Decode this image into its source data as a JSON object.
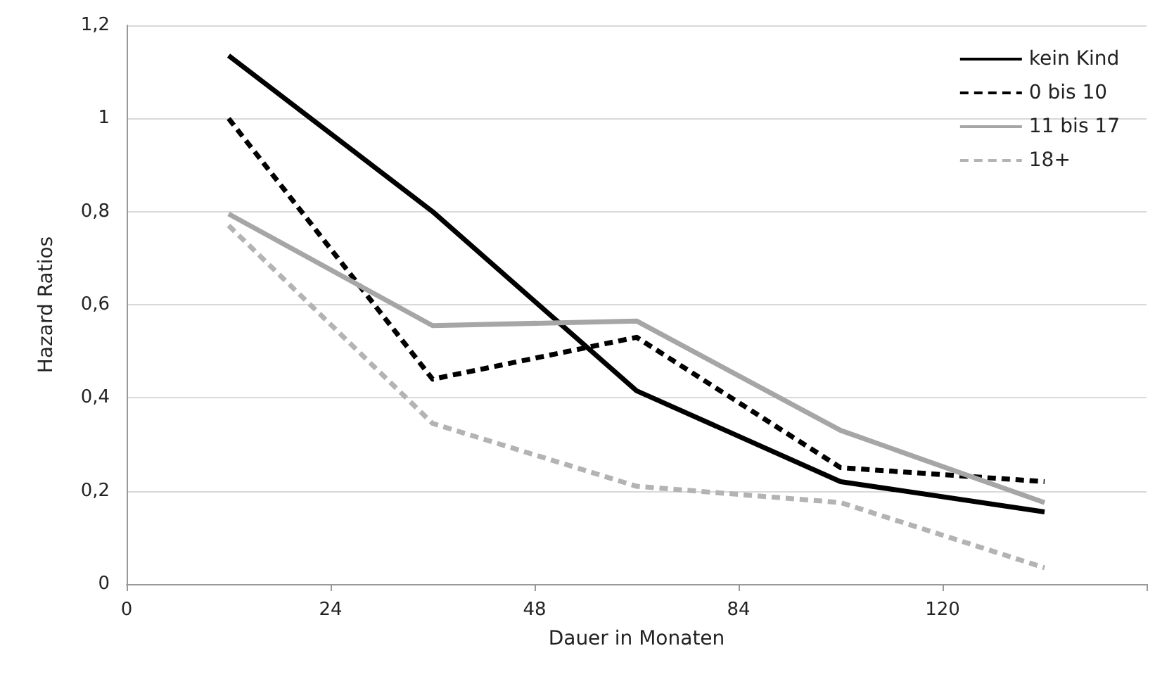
{
  "chart_data": {
    "type": "line",
    "xlabel": "Dauer in Monaten",
    "ylabel": "Hazard Ratios",
    "categories": [
      null,
      null,
      null,
      null,
      null
    ],
    "annotations": [
      "0",
      "24",
      "48",
      "84",
      "120"
    ],
    "series": [
      {
        "name": "kein Kind",
        "color": "#000000",
        "line_style": "solid",
        "values": [
          1.135,
          0.8,
          0.415,
          0.22,
          0.155
        ]
      },
      {
        "name": "0 bis 10",
        "color": "#000000",
        "line_style": "dashed",
        "values": [
          1.0,
          0.44,
          0.53,
          0.25,
          0.22
        ]
      },
      {
        "name": "11 bis 17",
        "color": "#a6a6a6",
        "line_style": "solid",
        "values": [
          0.795,
          0.555,
          0.565,
          0.33,
          0.175
        ]
      },
      {
        "name": "18+",
        "color": "#b3b3b3",
        "line_style": "dashed",
        "values": [
          0.77,
          0.345,
          0.21,
          0.175,
          0.035
        ]
      }
    ],
    "ylim": [
      0,
      1.2
    ],
    "yticks": [
      0,
      {
        "value": 0.2,
        "label": "0,2"
      },
      {
        "value": 0.4,
        "label": "0,4"
      },
      {
        "value": 0.6,
        "label": "0,6"
      },
      {
        "value": 0.8,
        "label": "0,8"
      },
      1,
      {
        "value": 1.2,
        "label": "1,2"
      }
    ],
    "grid": "y",
    "legend": "top right",
    "marker": "none"
  }
}
